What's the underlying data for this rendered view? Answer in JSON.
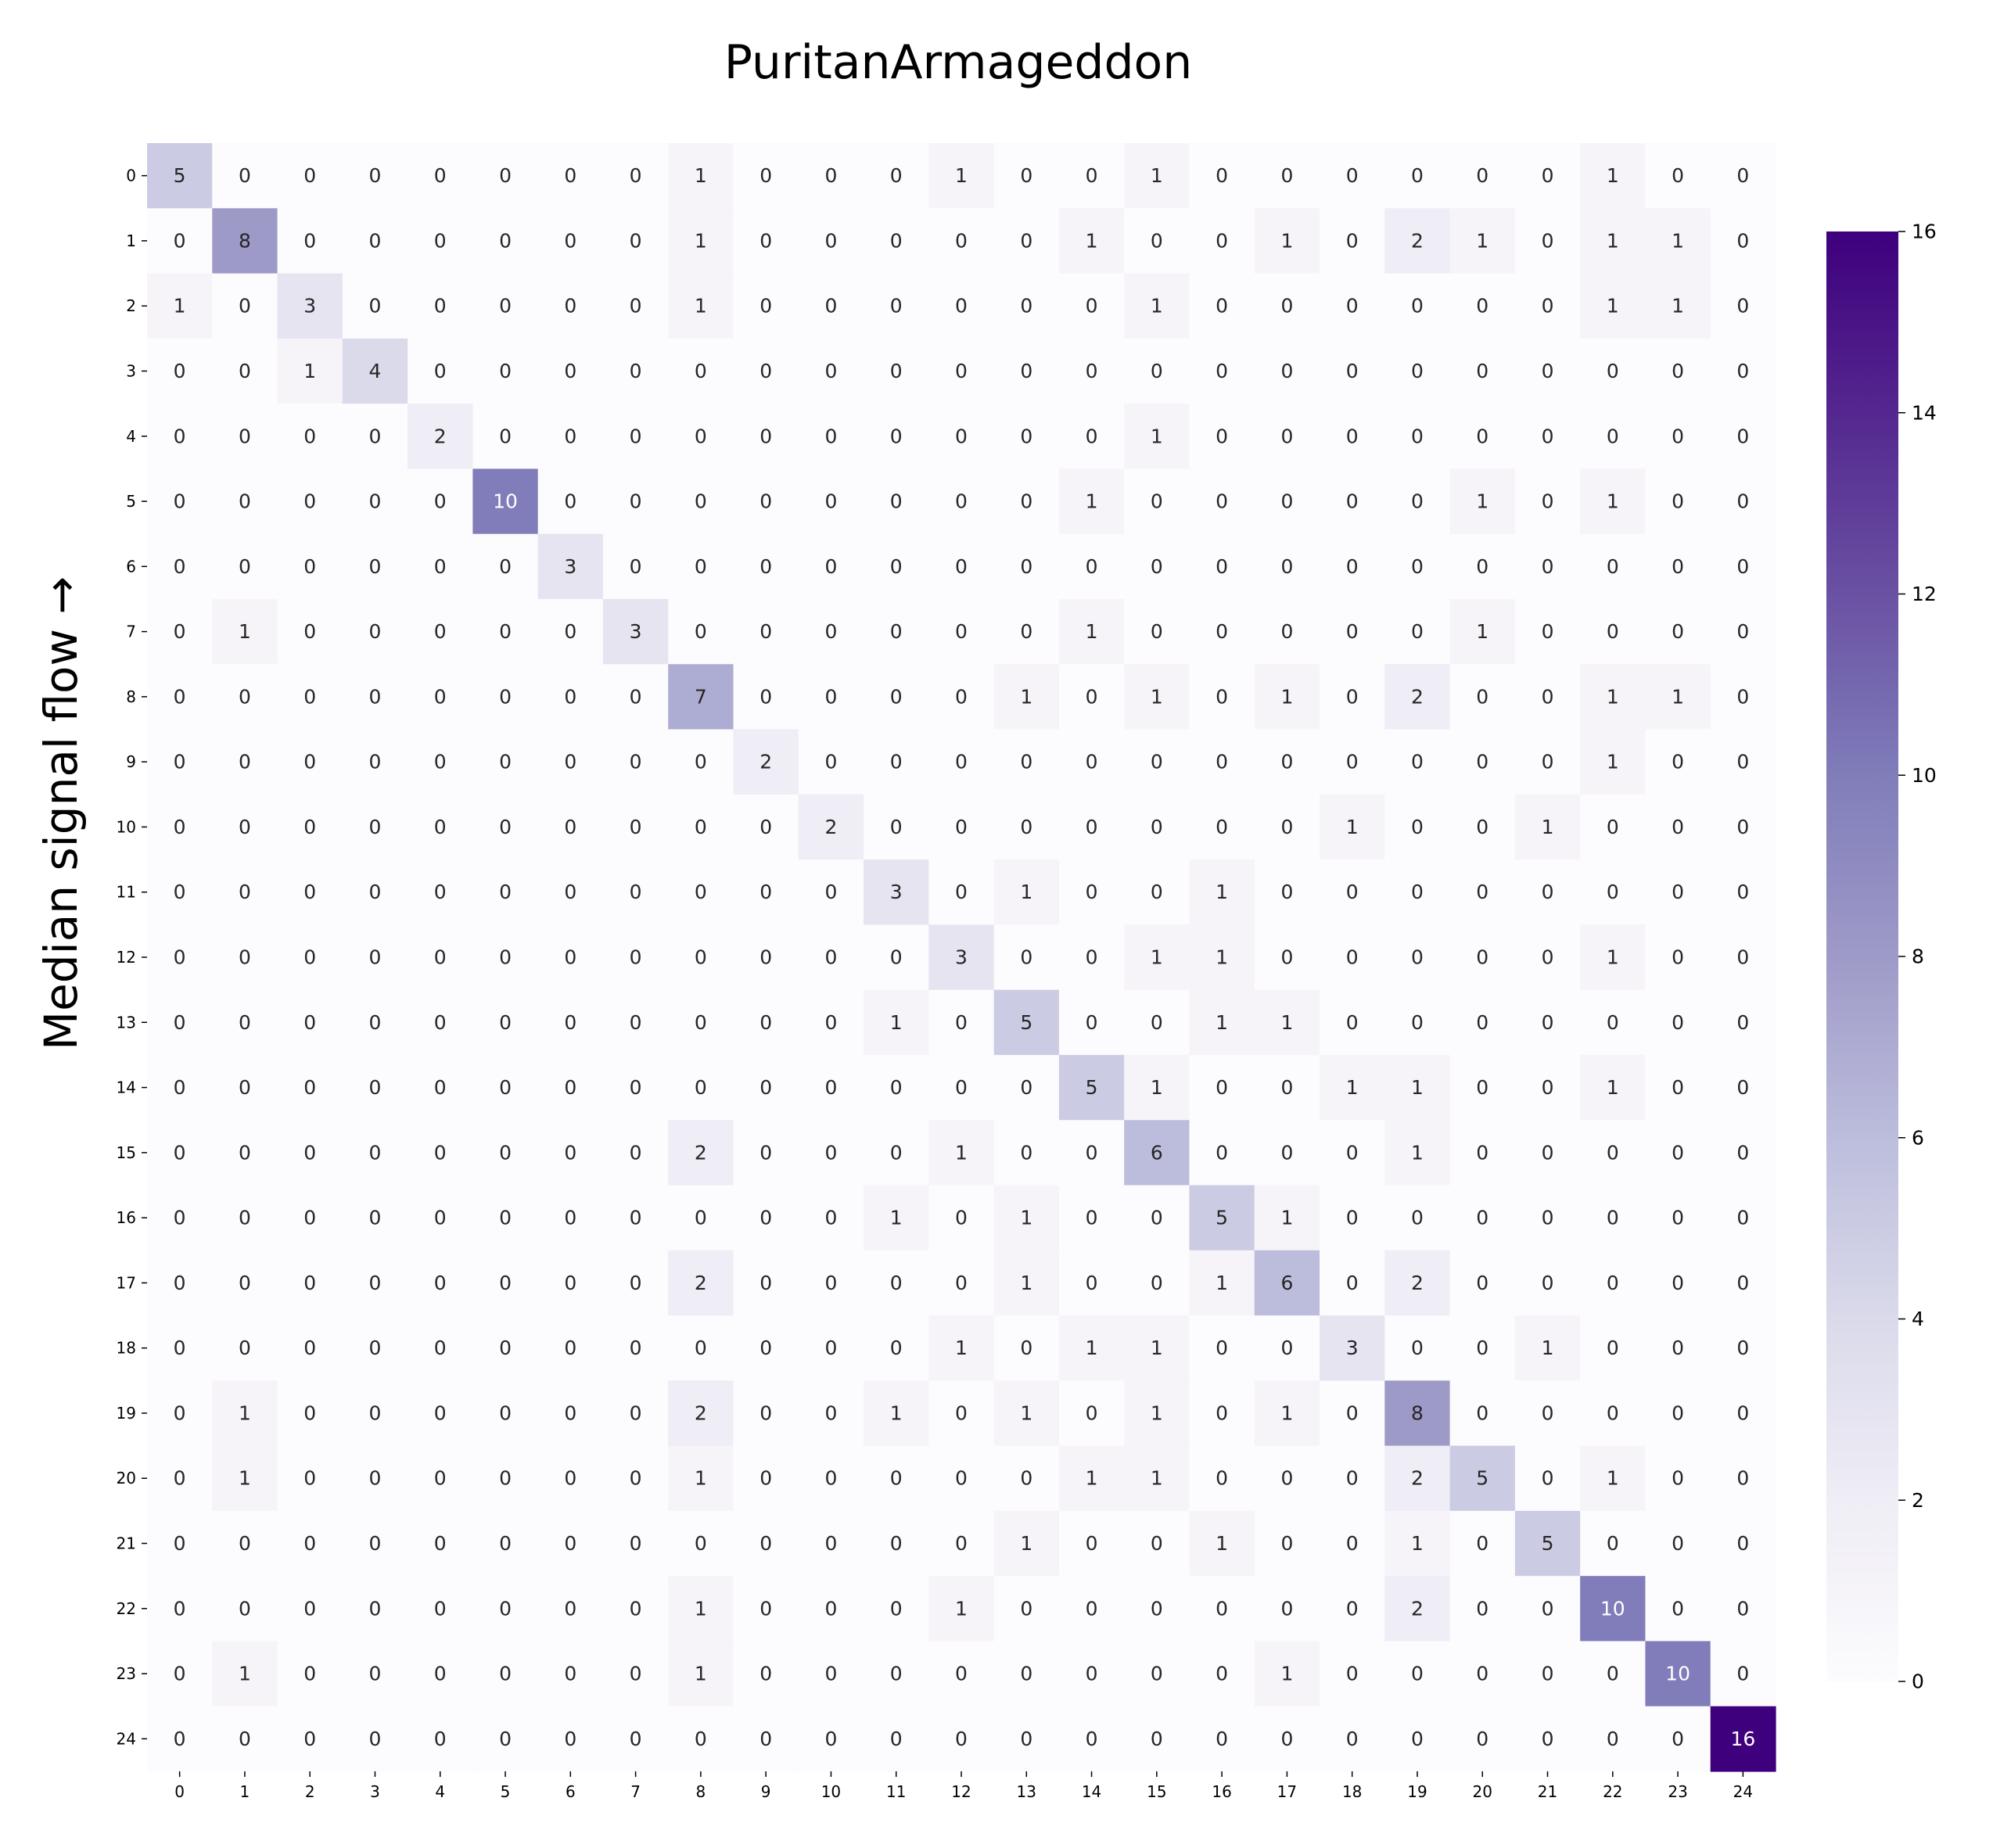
{
  "chart_data": {
    "type": "heatmap",
    "title": "PuritanArmageddon",
    "ylabel": "Median signal flow →",
    "xlabel": "",
    "x_labels": [
      "0",
      "1",
      "2",
      "3",
      "4",
      "5",
      "6",
      "7",
      "8",
      "9",
      "10",
      "11",
      "12",
      "13",
      "14",
      "15",
      "16",
      "17",
      "18",
      "19",
      "20",
      "21",
      "22",
      "23",
      "24"
    ],
    "y_labels": [
      "0",
      "1",
      "2",
      "3",
      "4",
      "5",
      "6",
      "7",
      "8",
      "9",
      "10",
      "11",
      "12",
      "13",
      "14",
      "15",
      "16",
      "17",
      "18",
      "19",
      "20",
      "21",
      "22",
      "23",
      "24"
    ],
    "values": [
      [
        5,
        0,
        0,
        0,
        0,
        0,
        0,
        0,
        1,
        0,
        0,
        0,
        1,
        0,
        0,
        1,
        0,
        0,
        0,
        0,
        0,
        0,
        1,
        0,
        0
      ],
      [
        0,
        8,
        0,
        0,
        0,
        0,
        0,
        0,
        1,
        0,
        0,
        0,
        0,
        0,
        1,
        0,
        0,
        1,
        0,
        2,
        1,
        0,
        1,
        1,
        0
      ],
      [
        1,
        0,
        3,
        0,
        0,
        0,
        0,
        0,
        1,
        0,
        0,
        0,
        0,
        0,
        0,
        1,
        0,
        0,
        0,
        0,
        0,
        0,
        1,
        1,
        0
      ],
      [
        0,
        0,
        1,
        4,
        0,
        0,
        0,
        0,
        0,
        0,
        0,
        0,
        0,
        0,
        0,
        0,
        0,
        0,
        0,
        0,
        0,
        0,
        0,
        0,
        0
      ],
      [
        0,
        0,
        0,
        0,
        2,
        0,
        0,
        0,
        0,
        0,
        0,
        0,
        0,
        0,
        0,
        1,
        0,
        0,
        0,
        0,
        0,
        0,
        0,
        0,
        0
      ],
      [
        0,
        0,
        0,
        0,
        0,
        10,
        0,
        0,
        0,
        0,
        0,
        0,
        0,
        0,
        1,
        0,
        0,
        0,
        0,
        0,
        1,
        0,
        1,
        0,
        0
      ],
      [
        0,
        0,
        0,
        0,
        0,
        0,
        3,
        0,
        0,
        0,
        0,
        0,
        0,
        0,
        0,
        0,
        0,
        0,
        0,
        0,
        0,
        0,
        0,
        0,
        0
      ],
      [
        0,
        1,
        0,
        0,
        0,
        0,
        0,
        3,
        0,
        0,
        0,
        0,
        0,
        0,
        1,
        0,
        0,
        0,
        0,
        0,
        1,
        0,
        0,
        0,
        0
      ],
      [
        0,
        0,
        0,
        0,
        0,
        0,
        0,
        0,
        7,
        0,
        0,
        0,
        0,
        1,
        0,
        1,
        0,
        1,
        0,
        2,
        0,
        0,
        1,
        1,
        0
      ],
      [
        0,
        0,
        0,
        0,
        0,
        0,
        0,
        0,
        0,
        2,
        0,
        0,
        0,
        0,
        0,
        0,
        0,
        0,
        0,
        0,
        0,
        0,
        1,
        0,
        0
      ],
      [
        0,
        0,
        0,
        0,
        0,
        0,
        0,
        0,
        0,
        0,
        2,
        0,
        0,
        0,
        0,
        0,
        0,
        0,
        1,
        0,
        0,
        1,
        0,
        0,
        0
      ],
      [
        0,
        0,
        0,
        0,
        0,
        0,
        0,
        0,
        0,
        0,
        0,
        3,
        0,
        1,
        0,
        0,
        1,
        0,
        0,
        0,
        0,
        0,
        0,
        0,
        0
      ],
      [
        0,
        0,
        0,
        0,
        0,
        0,
        0,
        0,
        0,
        0,
        0,
        0,
        3,
        0,
        0,
        1,
        1,
        0,
        0,
        0,
        0,
        0,
        1,
        0,
        0
      ],
      [
        0,
        0,
        0,
        0,
        0,
        0,
        0,
        0,
        0,
        0,
        0,
        1,
        0,
        5,
        0,
        0,
        1,
        1,
        0,
        0,
        0,
        0,
        0,
        0,
        0
      ],
      [
        0,
        0,
        0,
        0,
        0,
        0,
        0,
        0,
        0,
        0,
        0,
        0,
        0,
        0,
        5,
        1,
        0,
        0,
        1,
        1,
        0,
        0,
        1,
        0,
        0
      ],
      [
        0,
        0,
        0,
        0,
        0,
        0,
        0,
        0,
        2,
        0,
        0,
        0,
        1,
        0,
        0,
        6,
        0,
        0,
        0,
        1,
        0,
        0,
        0,
        0,
        0
      ],
      [
        0,
        0,
        0,
        0,
        0,
        0,
        0,
        0,
        0,
        0,
        0,
        1,
        0,
        1,
        0,
        0,
        5,
        1,
        0,
        0,
        0,
        0,
        0,
        0,
        0
      ],
      [
        0,
        0,
        0,
        0,
        0,
        0,
        0,
        0,
        2,
        0,
        0,
        0,
        0,
        1,
        0,
        0,
        1,
        6,
        0,
        2,
        0,
        0,
        0,
        0,
        0
      ],
      [
        0,
        0,
        0,
        0,
        0,
        0,
        0,
        0,
        0,
        0,
        0,
        0,
        1,
        0,
        1,
        1,
        0,
        0,
        3,
        0,
        0,
        1,
        0,
        0,
        0
      ],
      [
        0,
        1,
        0,
        0,
        0,
        0,
        0,
        0,
        2,
        0,
        0,
        1,
        0,
        1,
        0,
        1,
        0,
        1,
        0,
        8,
        0,
        0,
        0,
        0,
        0
      ],
      [
        0,
        1,
        0,
        0,
        0,
        0,
        0,
        0,
        1,
        0,
        0,
        0,
        0,
        0,
        1,
        1,
        0,
        0,
        0,
        2,
        5,
        0,
        1,
        0,
        0
      ],
      [
        0,
        0,
        0,
        0,
        0,
        0,
        0,
        0,
        0,
        0,
        0,
        0,
        0,
        1,
        0,
        0,
        1,
        0,
        0,
        1,
        0,
        5,
        0,
        0,
        0
      ],
      [
        0,
        0,
        0,
        0,
        0,
        0,
        0,
        0,
        1,
        0,
        0,
        0,
        1,
        0,
        0,
        0,
        0,
        0,
        0,
        2,
        0,
        0,
        10,
        0,
        0
      ],
      [
        0,
        1,
        0,
        0,
        0,
        0,
        0,
        0,
        1,
        0,
        0,
        0,
        0,
        0,
        0,
        0,
        0,
        1,
        0,
        0,
        0,
        0,
        0,
        10,
        0
      ],
      [
        0,
        0,
        0,
        0,
        0,
        0,
        0,
        0,
        0,
        0,
        0,
        0,
        0,
        0,
        0,
        0,
        0,
        0,
        0,
        0,
        0,
        0,
        0,
        0,
        16
      ]
    ],
    "colormap": "Purples",
    "vmin": 0,
    "vmax": 16,
    "colorbar_ticks": [
      0,
      2,
      4,
      6,
      8,
      10,
      12,
      14,
      16
    ],
    "colorbar_labels": [
      "0",
      "2",
      "4",
      "6",
      "8",
      "10",
      "12",
      "14",
      "16"
    ],
    "colors": {
      "low": "#fcfbfd",
      "high": "#3f007d",
      "text_dark": "#262626",
      "text_light": "#ffffff"
    }
  }
}
